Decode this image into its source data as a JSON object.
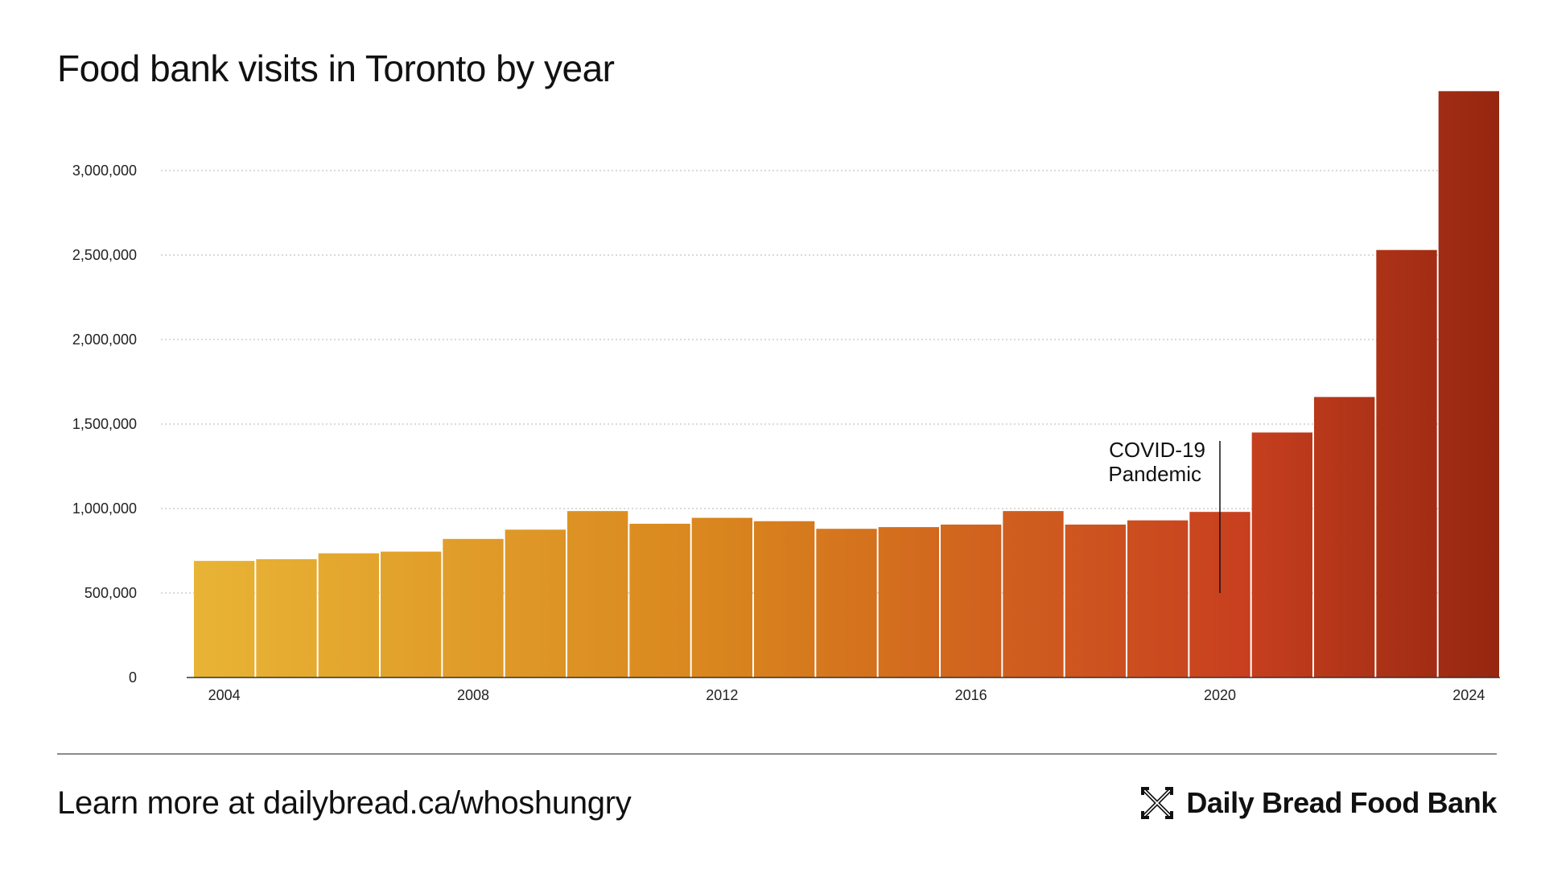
{
  "title": "Food bank visits in Toronto by year",
  "footer": {
    "learn_more": "Learn more at dailybread.ca/whoshungry",
    "brand": "Daily Bread Food Bank",
    "logo_icon": "daily-bread-x-logo-icon"
  },
  "colors": {
    "bar_start": "#e8b435",
    "bar_mid": "#d9861e",
    "bar_late": "#c8401f",
    "bar_end": "#952610",
    "grid": "#b5b5b5",
    "axis": "#333333"
  },
  "chart_data": {
    "type": "bar",
    "title": "Food bank visits in Toronto by year",
    "xlabel": "",
    "ylabel": "",
    "categories": [
      "2004",
      "2005",
      "2006",
      "2007",
      "2008",
      "2009",
      "2010",
      "2011",
      "2012",
      "2013",
      "2014",
      "2015",
      "2016",
      "2017",
      "2018",
      "2019",
      "2020",
      "2021",
      "2022",
      "2023",
      "2024"
    ],
    "values": [
      690000,
      700000,
      735000,
      745000,
      820000,
      875000,
      985000,
      910000,
      945000,
      925000,
      880000,
      890000,
      905000,
      985000,
      905000,
      930000,
      980000,
      1450000,
      1660000,
      2530000,
      3470000
    ],
    "ylim": [
      0,
      3500000
    ],
    "y_ticks": [
      0,
      500000,
      1000000,
      1500000,
      2000000,
      2500000,
      3000000
    ],
    "y_tick_labels": [
      "0",
      "500,000",
      "1,000,000",
      "1,500,000",
      "2,000,000",
      "2,500,000",
      "3,000,000"
    ],
    "x_tick_labels": [
      "2004",
      "2008",
      "2012",
      "2016",
      "2020",
      "2024"
    ],
    "grid": true,
    "annotation": {
      "year": "2020",
      "line1": "COVID-19",
      "line2": "Pandemic",
      "line_top_value": 1400000,
      "line_bottom_value": 500000
    }
  }
}
